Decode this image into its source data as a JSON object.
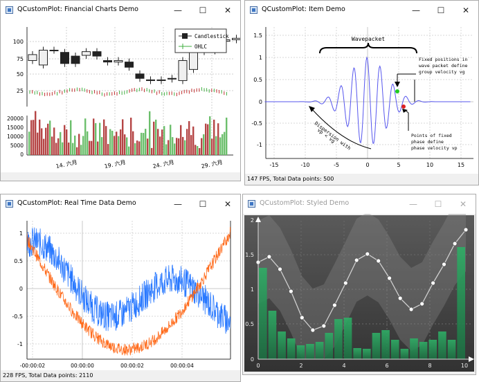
{
  "windows": {
    "financial": {
      "title": "QCustomPlot: Financial Charts Demo",
      "legend": [
        "Candlestick",
        "OHLC"
      ],
      "price_ticks": [
        "100",
        "75",
        "50",
        "25"
      ],
      "volume_ticks": [
        "20000",
        "15000",
        "10000",
        "5000",
        "0"
      ],
      "date_ticks": [
        "14. 六月",
        "19. 六月",
        "24. 六月",
        "29. 六月"
      ]
    },
    "item": {
      "title": "QCustomPlot: Item Demo",
      "status": "147 FPS, Total Data points: 500",
      "labels": {
        "wavepacket": "Wavepacket",
        "fixed_group": [
          "Fixed positions in",
          "wave packet define",
          "group velocity vg"
        ],
        "fixed_phase": [
          "Points of fixed",
          "phase define",
          "phase velocity vp"
        ],
        "dispersion": [
          "Dispersion with",
          "vp < vg"
        ]
      },
      "y_ticks": [
        "1.5",
        "1",
        "0.5",
        "0",
        "-0.5",
        "-1"
      ],
      "x_ticks": [
        "-15",
        "-10",
        "-5",
        "0",
        "5",
        "10",
        "15"
      ]
    },
    "realtime": {
      "title": "QCustomPlot: Real Time Data Demo",
      "status": "228 FPS, Total Data points: 2110",
      "y_ticks": [
        "1",
        "0.5",
        "0",
        "-0.5",
        "-1"
      ],
      "x_ticks": [
        "-00:00:02",
        "00:00:00",
        "00:00:02",
        "00:00:04"
      ]
    },
    "styled": {
      "title": "QCustomPlot: Styled Demo",
      "y_ticks": [
        "2",
        "1.5",
        "1",
        "0.5",
        "0"
      ],
      "x_ticks": [
        "0",
        "2",
        "4",
        "6",
        "8",
        "10"
      ]
    }
  },
  "window_controls": {
    "minimize": "—",
    "maximize": "☐",
    "close": "✕"
  },
  "colors": {
    "candle_up": "#f0f0f0",
    "candle_down": "#222222",
    "ohlc_up": "#3fae3f",
    "ohlc_down": "#c03030",
    "volume_pos": "#6cbf6c",
    "volume_neg": "#b54545",
    "wave": "#5555ee",
    "rt_blue": "#2878ff",
    "rt_orange": "#ff6a1a",
    "styled_bg": "#454545",
    "styled_bar": "#2a9a5a"
  },
  "chart_data": [
    {
      "type": "line",
      "title": "Styled Demo",
      "x": [
        0,
        0.53,
        1.05,
        1.58,
        2.11,
        2.63,
        3.16,
        3.68,
        4.21,
        4.74,
        5.26,
        5.79,
        6.32,
        6.84,
        7.37,
        7.89,
        8.42,
        8.95,
        9.47,
        10
      ],
      "series": [
        {
          "values": [
            1.4,
            1.48,
            1.3,
            0.98,
            0.6,
            0.42,
            0.48,
            0.78,
            1.1,
            1.43,
            1.52,
            1.42,
            1.17,
            0.88,
            0.72,
            0.8,
            1.1,
            1.37,
            1.67,
            1.87
          ]
        }
      ],
      "bars": [
        1.32,
        0.7,
        0.4,
        0.3,
        0.2,
        0.22,
        0.25,
        0.38,
        0.58,
        0.6,
        0.16,
        0.15,
        0.38,
        0.42,
        0.28,
        0.15,
        0.3,
        0.25,
        0.28,
        0.4,
        0.28,
        1.62
      ],
      "xlim": [
        0,
        10
      ],
      "ylim": [
        0,
        2
      ]
    }
  ]
}
